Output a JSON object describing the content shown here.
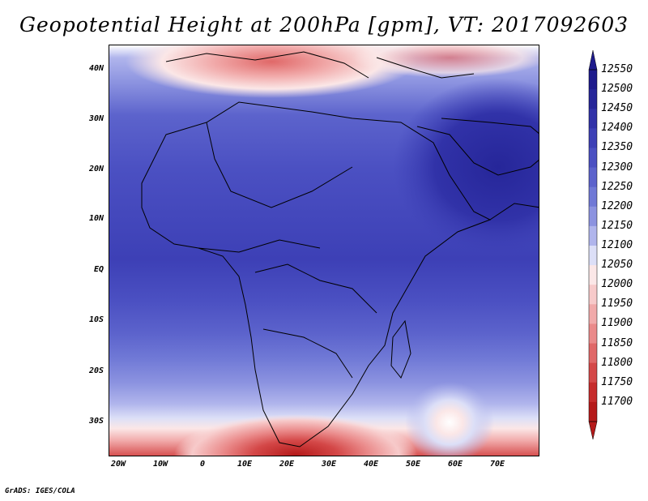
{
  "title": "Geopotential Height at 200hPa [gpm], VT: 2017092603",
  "credit": "GrADS: IGES/COLA",
  "lat_labels": [
    "40N",
    "30N",
    "20N",
    "10N",
    "EQ",
    "10S",
    "20S",
    "30S"
  ],
  "lon_labels": [
    "20W",
    "10W",
    "0",
    "10E",
    "20E",
    "30E",
    "40E",
    "50E",
    "60E",
    "70E"
  ],
  "colorbar": {
    "levels": [
      "12550",
      "12500",
      "12450",
      "12400",
      "12350",
      "12300",
      "12250",
      "12200",
      "12150",
      "12100",
      "12050",
      "12000",
      "11950",
      "11900",
      "11850",
      "11800",
      "11750",
      "11700"
    ],
    "colors": [
      "#1e1b8c",
      "#262699",
      "#3132a8",
      "#3d40b6",
      "#4b50c2",
      "#5c63cc",
      "#7079d6",
      "#8c93e0",
      "#b0b5ec",
      "#dcdff7",
      "#fbe7e7",
      "#f7caca",
      "#f1aaaa",
      "#ea8a8a",
      "#e06868",
      "#d44848",
      "#c62c2c",
      "#b51a1a"
    ]
  },
  "colors": {
    "land_border": "#000000",
    "background": "#ffffff"
  }
}
